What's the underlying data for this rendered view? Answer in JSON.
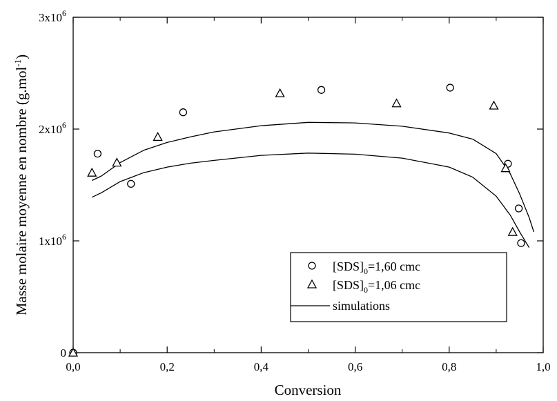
{
  "chart_data": {
    "type": "scatter",
    "xlabel": "Conversion",
    "ylabel": "Masse molaire moyenne en nombre (g.mol",
    "ylabel_sup": "-1",
    "ylabel_close": ")",
    "xlim": [
      0.0,
      1.0
    ],
    "ylim": [
      0,
      3000000
    ],
    "grid": false,
    "legend_position": "bottom-right",
    "x_ticks": [
      0.0,
      0.2,
      0.4,
      0.6,
      0.8,
      1.0
    ],
    "x_tick_labels": [
      "0,0",
      "0,2",
      "0,4",
      "0,6",
      "0,8",
      "1,0"
    ],
    "y_ticks": [
      0,
      1000000,
      2000000,
      3000000
    ],
    "y_tick_labels": [
      {
        "base": "0",
        "exp": ""
      },
      {
        "base": "1x10",
        "exp": "6"
      },
      {
        "base": "2x10",
        "exp": "6"
      },
      {
        "base": "3x10",
        "exp": "6"
      }
    ],
    "series": [
      {
        "name": "[SDS]",
        "name_sub": "0",
        "name_rest": "=1,60 cmc",
        "marker": "circle",
        "x": [
          0.0,
          0.052,
          0.123,
          0.234,
          0.528,
          0.802,
          0.925,
          0.948,
          0.953
        ],
        "y": [
          0,
          1780000,
          1510000,
          2150000,
          2350000,
          2370000,
          1690000,
          1290000,
          980000
        ]
      },
      {
        "name": "[SDS]",
        "name_sub": "0",
        "name_rest": "=1,06 cmc",
        "marker": "triangle",
        "x": [
          0.0,
          0.04,
          0.093,
          0.18,
          0.44,
          0.688,
          0.895,
          0.92,
          0.935
        ],
        "y": [
          0,
          1610000,
          1700000,
          1930000,
          2320000,
          2230000,
          2210000,
          1650000,
          1080000
        ]
      },
      {
        "name": "simulations",
        "marker": "line",
        "curves": [
          {
            "x": [
              0.04,
              0.06,
              0.1,
              0.15,
              0.2,
              0.25,
              0.3,
              0.4,
              0.5,
              0.6,
              0.7,
              0.8,
              0.85,
              0.9,
              0.93,
              0.95,
              0.97,
              0.98
            ],
            "y": [
              1540000,
              1580000,
              1700000,
              1810000,
              1880000,
              1930000,
              1975000,
              2030000,
              2060000,
              2055000,
              2025000,
              1965000,
              1910000,
              1780000,
              1600000,
              1420000,
              1210000,
              1080000
            ]
          },
          {
            "x": [
              0.04,
              0.06,
              0.1,
              0.15,
              0.2,
              0.25,
              0.3,
              0.4,
              0.5,
              0.6,
              0.7,
              0.8,
              0.85,
              0.9,
              0.93,
              0.95,
              0.97
            ],
            "y": [
              1390000,
              1430000,
              1530000,
              1610000,
              1660000,
              1695000,
              1720000,
              1765000,
              1785000,
              1775000,
              1740000,
              1660000,
              1570000,
              1400000,
              1230000,
              1080000,
              940000
            ]
          }
        ]
      }
    ]
  }
}
